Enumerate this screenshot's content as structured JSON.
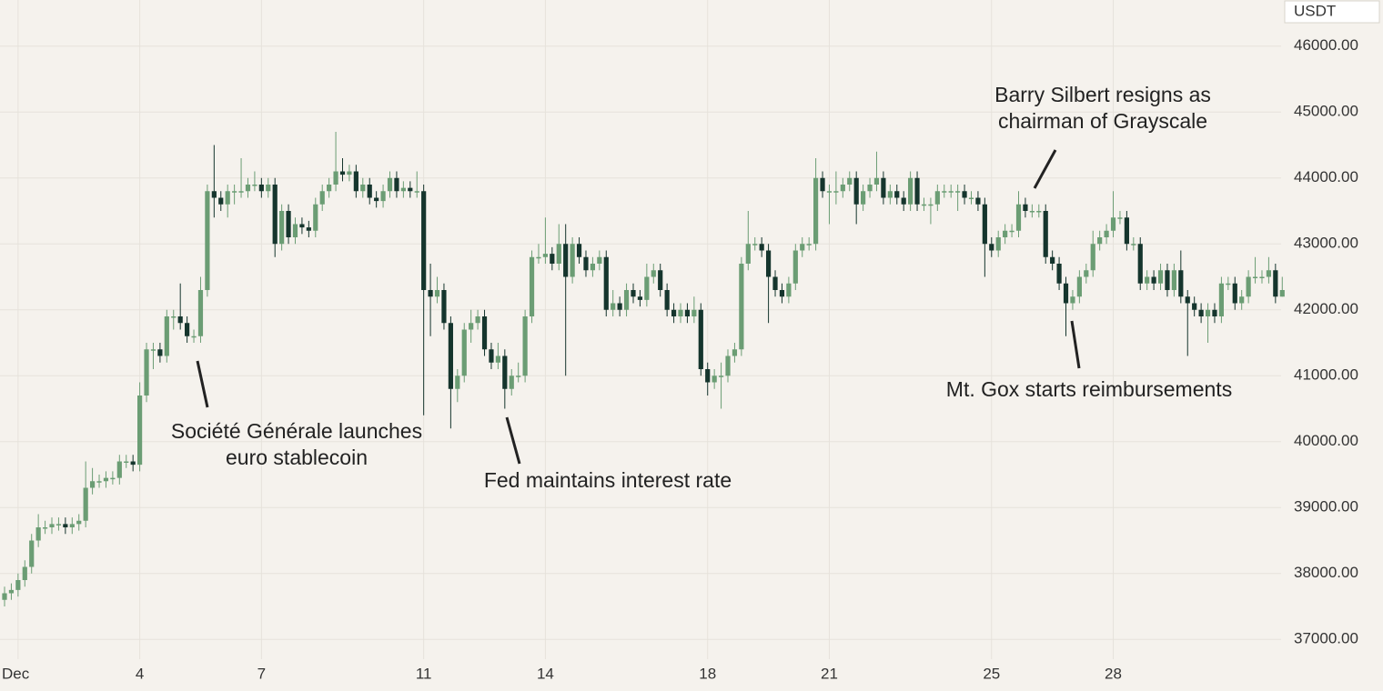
{
  "chart_data": {
    "type": "candlestick",
    "currency": "USDT",
    "up_color": "#6b9d74",
    "down_color": "#15352d",
    "grid": true,
    "ylim": [
      36700,
      46700
    ],
    "yticks": [
      {
        "value": 37000,
        "label": "37000.00"
      },
      {
        "value": 38000,
        "label": "38000.00"
      },
      {
        "value": 39000,
        "label": "39000.00"
      },
      {
        "value": 40000,
        "label": "40000.00"
      },
      {
        "value": 41000,
        "label": "41000.00"
      },
      {
        "value": 42000,
        "label": "42000.00"
      },
      {
        "value": 43000,
        "label": "43000.00"
      },
      {
        "value": 44000,
        "label": "44000.00"
      },
      {
        "value": 45000,
        "label": "45000.00"
      },
      {
        "value": 46000,
        "label": "46000.00"
      }
    ],
    "categories": [
      null,
      null,
      "Dec",
      null,
      null,
      null,
      null,
      null,
      null,
      null,
      null,
      null,
      null,
      null,
      null,
      null,
      null,
      null,
      null,
      null,
      "4",
      null,
      null,
      null,
      null,
      null,
      null,
      null,
      null,
      null,
      null,
      null,
      null,
      null,
      null,
      null,
      null,
      null,
      "7",
      null,
      null,
      null,
      null,
      null,
      null,
      null,
      null,
      null,
      null,
      null,
      null,
      null,
      null,
      null,
      null,
      null,
      null,
      null,
      null,
      null,
      null,
      null,
      "11",
      null,
      null,
      null,
      null,
      null,
      null,
      null,
      null,
      null,
      null,
      null,
      null,
      null,
      null,
      null,
      null,
      null,
      "14",
      null,
      null,
      null,
      null,
      null,
      null,
      null,
      null,
      null,
      null,
      null,
      null,
      null,
      null,
      null,
      null,
      null,
      null,
      null,
      null,
      null,
      null,
      null,
      "18",
      null,
      null,
      null,
      null,
      null,
      null,
      null,
      null,
      null,
      null,
      null,
      null,
      null,
      null,
      null,
      null,
      null,
      "21",
      null,
      null,
      null,
      null,
      null,
      null,
      null,
      null,
      null,
      null,
      null,
      null,
      null,
      null,
      null,
      null,
      null,
      null,
      null,
      null,
      null,
      null,
      null,
      "25",
      null,
      null,
      null,
      null,
      null,
      null,
      null,
      null,
      null,
      null,
      null,
      null,
      null,
      null,
      null,
      null,
      null,
      "28",
      null,
      null,
      null,
      null,
      null,
      null,
      null,
      null,
      null,
      null,
      null,
      null,
      null,
      null,
      null,
      null,
      null,
      null,
      null,
      null,
      null,
      null,
      null,
      null,
      null
    ],
    "open": [
      37600,
      37700,
      37750,
      37900,
      38100,
      38500,
      38700,
      38700,
      38750,
      38750,
      38700,
      38750,
      38800,
      39300,
      39400,
      39400,
      39450,
      39450,
      39700,
      39700,
      39650,
      40700,
      41400,
      41400,
      41300,
      41900,
      41900,
      41800,
      41600,
      41600,
      42300,
      43800,
      43700,
      43600,
      43800,
      43800,
      43800,
      43900,
      43900,
      43800,
      43900,
      43000,
      43500,
      43100,
      43300,
      43250,
      43200,
      43600,
      43800,
      43900,
      44100,
      44050,
      44100,
      43800,
      43900,
      43700,
      43650,
      43800,
      44000,
      43800,
      43850,
      43800,
      43800,
      42300,
      42200,
      42300,
      41800,
      40800,
      41000,
      41700,
      41800,
      41900,
      41400,
      41200,
      41300,
      40800,
      41000,
      41000,
      41900,
      42800,
      42800,
      42850,
      42700,
      43000,
      42500,
      43000,
      42800,
      42600,
      42700,
      42800,
      42000,
      42100,
      42000,
      42300,
      42200,
      42150,
      42500,
      42600,
      42300,
      42000,
      41900,
      42000,
      41900,
      42000,
      41100,
      40900,
      41000,
      41000,
      41300,
      41400,
      42700,
      43000,
      43000,
      42900,
      42500,
      42300,
      42200,
      42400,
      42900,
      43000,
      43000,
      44000,
      43800,
      43800,
      43800,
      43900,
      44000,
      43600,
      43800,
      43900,
      44000,
      43700,
      43800,
      43700,
      43600,
      44000,
      43600,
      43600,
      43600,
      43800,
      43800,
      43800,
      43800,
      43700,
      43700,
      43600,
      43000,
      42900,
      43100,
      43200,
      43200,
      43600,
      43500,
      43500,
      43500,
      42800,
      42700,
      42400,
      42100,
      42200,
      42500,
      42600,
      43000,
      43100,
      43200,
      43400,
      43400,
      43000,
      43000,
      42400,
      42500,
      42400,
      42600,
      42300,
      42600,
      42200,
      42100,
      42000,
      41900,
      42000,
      41900,
      42400,
      42400,
      42100,
      42200,
      42500,
      42500,
      42500,
      42600,
      42200
    ],
    "high": [
      37800,
      37850,
      38000,
      38200,
      38600,
      38900,
      38800,
      38850,
      38850,
      38850,
      38850,
      38900,
      39700,
      39600,
      39500,
      39550,
      39550,
      39800,
      39800,
      39800,
      40900,
      41500,
      41500,
      41500,
      42000,
      42000,
      42400,
      41900,
      41700,
      42500,
      43900,
      44500,
      43800,
      43900,
      43900,
      44300,
      44000,
      44100,
      44000,
      44000,
      44000,
      43600,
      43600,
      43400,
      43400,
      43350,
      43700,
      43900,
      44000,
      44700,
      44300,
      44200,
      44200,
      44000,
      44000,
      43800,
      43900,
      44100,
      44100,
      43950,
      43950,
      44100,
      43900,
      42700,
      42500,
      42400,
      41900,
      41100,
      41800,
      42000,
      42000,
      42000,
      41500,
      41500,
      41400,
      41100,
      41200,
      42000,
      42900,
      43000,
      43400,
      42950,
      43300,
      43300,
      43100,
      43100,
      42900,
      42800,
      42900,
      42900,
      42300,
      42200,
      42400,
      42400,
      42300,
      42700,
      42700,
      42700,
      42400,
      42100,
      42100,
      42100,
      42200,
      42100,
      41200,
      41100,
      41200,
      41400,
      41500,
      42800,
      43500,
      43100,
      43100,
      43000,
      42600,
      42400,
      42500,
      43000,
      43100,
      43100,
      44300,
      44100,
      43900,
      44100,
      44000,
      44100,
      44100,
      43900,
      44000,
      44400,
      44100,
      43900,
      43900,
      43800,
      44100,
      44100,
      43700,
      43700,
      43900,
      43900,
      43900,
      43900,
      43900,
      43800,
      43800,
      43700,
      43100,
      43200,
      43300,
      43300,
      43800,
      43700,
      43600,
      43600,
      43600,
      42900,
      42800,
      42500,
      42300,
      42600,
      42700,
      43200,
      43200,
      43300,
      43800,
      43500,
      43500,
      43100,
      43100,
      42600,
      42600,
      42700,
      42700,
      42700,
      42900,
      42300,
      42200,
      42100,
      42100,
      42100,
      42500,
      42500,
      42500,
      42300,
      42600,
      42800,
      42600,
      42800,
      42700,
      42500
    ],
    "low": [
      37500,
      37600,
      37650,
      37800,
      38000,
      38400,
      38600,
      38600,
      38650,
      38600,
      38600,
      38650,
      38700,
      39200,
      39300,
      39300,
      39350,
      39350,
      39600,
      39550,
      39550,
      40600,
      41100,
      41200,
      41200,
      41700,
      41700,
      41500,
      41500,
      41500,
      42200,
      43400,
      43500,
      43400,
      43600,
      43700,
      43700,
      43800,
      43700,
      43700,
      42800,
      42900,
      43000,
      43000,
      43150,
      43100,
      43100,
      43500,
      43700,
      43800,
      43950,
      43950,
      43700,
      43700,
      43600,
      43550,
      43550,
      43700,
      43700,
      43700,
      43700,
      43700,
      40400,
      41600,
      42100,
      41700,
      40200,
      40600,
      40900,
      41500,
      41700,
      41300,
      41100,
      41100,
      40500,
      40700,
      40900,
      40900,
      41800,
      42700,
      42700,
      42600,
      42600,
      41000,
      42400,
      42700,
      42500,
      42500,
      42600,
      41900,
      41900,
      41900,
      41900,
      42100,
      42050,
      42050,
      42400,
      42200,
      41900,
      41800,
      41800,
      41800,
      41800,
      41000,
      40700,
      40800,
      40500,
      40900,
      41200,
      41300,
      42600,
      42900,
      42800,
      41800,
      42200,
      42100,
      42100,
      42300,
      42800,
      42900,
      42900,
      43700,
      43300,
      43600,
      43700,
      43800,
      43300,
      43500,
      43700,
      43800,
      43600,
      43600,
      43600,
      43500,
      43500,
      43500,
      43500,
      43300,
      43500,
      43700,
      43700,
      43500,
      43600,
      43600,
      43500,
      42500,
      42800,
      42800,
      43000,
      43100,
      43100,
      43400,
      43400,
      43400,
      42700,
      42600,
      42300,
      41600,
      42000,
      42100,
      42400,
      42500,
      42900,
      43000,
      43100,
      43300,
      42900,
      42900,
      42300,
      42300,
      42300,
      42300,
      42200,
      42200,
      42100,
      41300,
      41900,
      41800,
      41500,
      41800,
      41800,
      42300,
      42000,
      42000,
      42100,
      42400,
      42400,
      42400,
      42100,
      42200
    ],
    "close": [
      37700,
      37750,
      37900,
      38100,
      38500,
      38700,
      38700,
      38750,
      38750,
      38700,
      38750,
      38800,
      39300,
      39400,
      39400,
      39450,
      39450,
      39700,
      39700,
      39650,
      40700,
      41400,
      41400,
      41300,
      41900,
      41900,
      41800,
      41600,
      41600,
      42300,
      43800,
      43700,
      43600,
      43800,
      43800,
      43800,
      43900,
      43900,
      43800,
      43900,
      43000,
      43500,
      43100,
      43300,
      43250,
      43200,
      43600,
      43800,
      43900,
      44100,
      44050,
      44100,
      43800,
      43900,
      43700,
      43650,
      43800,
      44000,
      43800,
      43850,
      43800,
      43800,
      42300,
      42200,
      42300,
      41800,
      40800,
      41000,
      41700,
      41800,
      41900,
      41400,
      41200,
      41300,
      40800,
      41000,
      41000,
      41900,
      42800,
      42800,
      42850,
      42700,
      43000,
      42500,
      43000,
      42800,
      42600,
      42700,
      42800,
      42000,
      42100,
      42000,
      42300,
      42200,
      42150,
      42500,
      42600,
      42300,
      42000,
      41900,
      42000,
      41900,
      42000,
      41100,
      40900,
      41000,
      41000,
      41300,
      41400,
      42700,
      43000,
      43000,
      42900,
      42500,
      42300,
      42200,
      42400,
      42900,
      43000,
      43000,
      44000,
      43800,
      43800,
      43800,
      43900,
      44000,
      43600,
      43800,
      43900,
      44000,
      43700,
      43800,
      43700,
      43600,
      44000,
      43600,
      43600,
      43600,
      43800,
      43800,
      43800,
      43800,
      43700,
      43700,
      43600,
      43000,
      42900,
      43100,
      43200,
      43200,
      43600,
      43500,
      43500,
      43500,
      42800,
      42700,
      42400,
      42100,
      42200,
      42500,
      42600,
      43000,
      43100,
      43200,
      43400,
      43400,
      43000,
      43000,
      42400,
      42500,
      42400,
      42600,
      42300,
      42600,
      42200,
      42100,
      42000,
      41900,
      42000,
      41900,
      42400,
      42400,
      42100,
      42200,
      42500,
      42500,
      42500,
      42600,
      42200,
      42300
    ],
    "annotations": [
      {
        "lines": [
          "Société Générale launches",
          "euro stablecoin"
        ]
      },
      {
        "lines": [
          "Fed maintains interest rate"
        ]
      },
      {
        "lines": [
          "Barry Silbert resigns as",
          "chairman of Grayscale"
        ]
      },
      {
        "lines": [
          "Mt. Gox starts reimbursements"
        ]
      }
    ]
  }
}
